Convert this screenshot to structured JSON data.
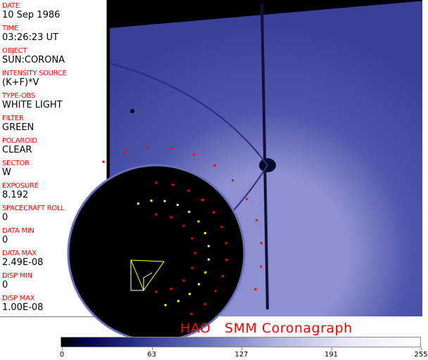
{
  "fields": [
    {
      "label": "DATE",
      "value": "10 Sep 1986"
    },
    {
      "label": "TIME",
      "value": "03:26:23 UT"
    },
    {
      "label": "OBJECT",
      "value": "SUN:CORONA"
    },
    {
      "label": "INTENSITY SOURCE",
      "value": "(K+F)*V"
    },
    {
      "label": "TYPE-OBS",
      "value": "WHITE LIGHT"
    },
    {
      "label": "FILTER",
      "value": "GREEN"
    },
    {
      "label": "POLAROID",
      "value": "CLEAR"
    },
    {
      "label": "SECTOR",
      "value": "W"
    },
    {
      "label": "EXPOSURE",
      "value": "8.192"
    },
    {
      "label": "SPACECRAFT ROLL",
      "value": "0"
    },
    {
      "label": "DATA MIN",
      "value": "0"
    },
    {
      "label": "DATA MAX",
      "value": "2.49E-08"
    },
    {
      "label": "DISP MIN",
      "value": "0"
    },
    {
      "label": "DISP MAX",
      "value": "1.00E-08"
    }
  ],
  "title": "HAO   SMM Coronagraph",
  "colorbar": {
    "ticks": [
      "0",
      "63",
      "127",
      "191",
      "255"
    ],
    "colors": {
      "low": "#000000",
      "mid": "#7a80c8",
      "high": "#fbfbfb"
    }
  },
  "colors": {
    "label": "#ff0000",
    "image_blue": "#3a3f9a"
  }
}
